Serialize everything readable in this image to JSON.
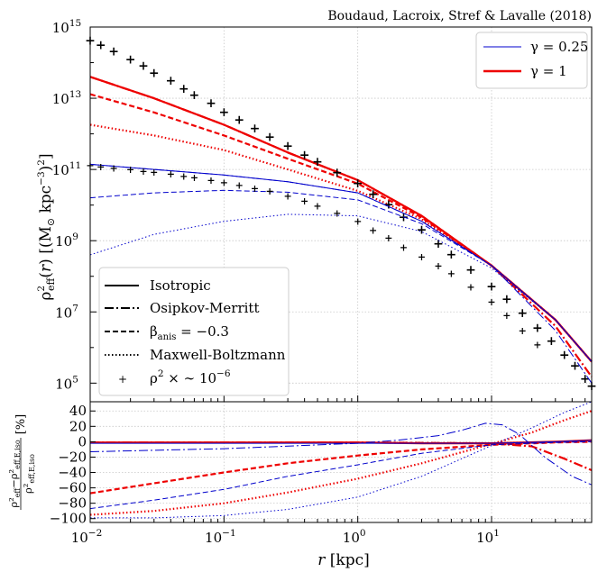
{
  "citation": "Boudaud, Lacroix, Stref & Lavalle (2018)",
  "colors": {
    "gamma_0.25": "#0000cc",
    "gamma_1": "#ee0000",
    "grid": "#c8c8c8"
  },
  "chart_data": [
    {
      "type": "line",
      "panel": "top",
      "title": "",
      "xlabel": "r [kpc]",
      "ylabel": "ρ²_eff(r) [(M_⊙ kpc⁻³)²]",
      "xscale": "log",
      "yscale": "log",
      "xlim": [
        0.01,
        56
      ],
      "ylim": [
        30000,
        1000000000000000.0
      ],
      "x_ticks": [
        {
          "base": "10",
          "exp": "−2"
        },
        {
          "base": "10",
          "exp": "−1"
        },
        {
          "base": "10",
          "exp": "0"
        },
        {
          "base": "10",
          "exp": "1"
        }
      ],
      "y_ticks": [
        {
          "base": "10",
          "exp": "5"
        },
        {
          "base": "10",
          "exp": "7"
        },
        {
          "base": "10",
          "exp": "9"
        },
        {
          "base": "10",
          "exp": "11"
        },
        {
          "base": "10",
          "exp": "13"
        },
        {
          "base": "10",
          "exp": "15"
        }
      ],
      "grid": true,
      "legend_gamma": {
        "position": "top-right",
        "entries": [
          {
            "label": "γ = 0.25",
            "color": "#0000cc"
          },
          {
            "label": "γ = 1",
            "color": "#ee0000"
          }
        ]
      },
      "legend_style": {
        "position": "bottom-left",
        "entries": [
          {
            "label": "Isotropic",
            "style": "solid"
          },
          {
            "label": "Osipkov-Merritt",
            "style": "dashdot"
          },
          {
            "label": "β_anis = −0.3",
            "style": "dashed"
          },
          {
            "label": "Maxwell-Boltzmann",
            "style": "dotted"
          },
          {
            "label": "ρ² × ∼ 10⁻⁶",
            "style": "plus"
          }
        ]
      },
      "series": [
        {
          "gamma": "1",
          "kind": "isotropic",
          "x": [
            0.01,
            0.03,
            0.1,
            0.3,
            1,
            3,
            10,
            30,
            56
          ],
          "y": [
            40000000000000.0,
            10000000000000.0,
            1800000000000.0,
            300000000000.0,
            50000000000.0,
            5000000000.0,
            200000000.0,
            6000000.0,
            400000.0
          ]
        },
        {
          "gamma": "1",
          "kind": "osipkov-merritt",
          "x": [
            0.01,
            0.03,
            0.1,
            0.3,
            1,
            3,
            10,
            30,
            56
          ],
          "y": [
            40000000000000.0,
            10000000000000.0,
            1800000000000.0,
            300000000000.0,
            50000000000.0,
            5000000000.0,
            200000000.0,
            4000000.0,
            150000.0
          ]
        },
        {
          "gamma": "1",
          "kind": "beta_anis",
          "x": [
            0.01,
            0.03,
            0.1,
            0.3,
            1,
            3,
            10,
            30,
            56
          ],
          "y": [
            13000000000000.0,
            4000000000000.0,
            900000000000.0,
            200000000000.0,
            40000000000.0,
            4500000000.0,
            200000000.0,
            6000000.0,
            400000.0
          ]
        },
        {
          "gamma": "1",
          "kind": "maxwell-boltzmann",
          "x": [
            0.01,
            0.03,
            0.1,
            0.3,
            1,
            3,
            10,
            30,
            56
          ],
          "y": [
            1800000000000.0,
            900000000000.0,
            350000000000.0,
            100000000000.0,
            25000000000.0,
            4000000000.0,
            200000000.0,
            6000000.0,
            400000.0
          ]
        },
        {
          "gamma": "1",
          "kind": "rho_squared_scaled",
          "x": [
            0.01,
            0.012,
            0.015,
            0.02,
            0.025,
            0.03,
            0.04,
            0.05,
            0.06,
            0.08,
            0.1,
            0.13,
            0.17,
            0.22,
            0.3,
            0.4,
            0.5,
            0.7,
            1,
            1.3,
            1.7,
            2.2,
            3,
            4,
            5,
            7,
            10,
            13,
            17,
            22,
            28,
            35,
            42,
            50,
            56
          ],
          "y": [
            400000000000000.0,
            300000000000000.0,
            200000000000000.0,
            120000000000000.0,
            80000000000000.0,
            50000000000000.0,
            30000000000000.0,
            18000000000000.0,
            12000000000000.0,
            7000000000000.0,
            4000000000000.0,
            2400000000000.0,
            1400000000000.0,
            800000000000.0,
            450000000000.0,
            250000000000.0,
            160000000000.0,
            80000000000.0,
            40000000000.0,
            20000000000.0,
            10000000000.0,
            4500000000.0,
            2000000000.0,
            800000000.0,
            400000000.0,
            150000000.0,
            50000000.0,
            22000000.0,
            9000000.0,
            3500000.0,
            1500000.0,
            600000.0,
            300000.0,
            130000.0,
            80000.0
          ]
        },
        {
          "gamma": "0.25",
          "kind": "isotropic",
          "x": [
            0.01,
            0.03,
            0.1,
            0.3,
            1,
            3,
            10,
            30,
            56
          ],
          "y": [
            140000000000.0,
            100000000000.0,
            70000000000.0,
            45000000000.0,
            22000000000.0,
            3500000000.0,
            200000000.0,
            6000000.0,
            400000.0
          ]
        },
        {
          "gamma": "0.25",
          "kind": "osipkov-merritt",
          "x": [
            0.01,
            0.03,
            0.1,
            0.3,
            1,
            3,
            10,
            30,
            56
          ],
          "y": [
            140000000000.0,
            100000000000.0,
            70000000000.0,
            45000000000.0,
            22000000000.0,
            3500000000.0,
            200000000.0,
            3000000.0,
            100000.0
          ]
        },
        {
          "gamma": "0.25",
          "kind": "beta_anis",
          "x": [
            0.01,
            0.03,
            0.1,
            0.3,
            1,
            3,
            10,
            30,
            56
          ],
          "y": [
            16000000000.0,
            22000000000.0,
            26000000000.0,
            23000000000.0,
            14000000000.0,
            3000000000.0,
            200000000.0,
            6000000.0,
            400000.0
          ]
        },
        {
          "gamma": "0.25",
          "kind": "maxwell-boltzmann",
          "x": [
            0.01,
            0.03,
            0.1,
            0.3,
            1,
            3,
            10,
            30,
            56
          ],
          "y": [
            400000000.0,
            1500000000.0,
            3500000000.0,
            5500000000.0,
            5000000000.0,
            1800000000.0,
            170000000.0,
            6000000.0,
            400000.0
          ]
        },
        {
          "gamma": "0.25",
          "kind": "rho_squared_scaled",
          "x": [
            0.01,
            0.012,
            0.015,
            0.02,
            0.025,
            0.03,
            0.04,
            0.05,
            0.06,
            0.08,
            0.1,
            0.13,
            0.17,
            0.22,
            0.3,
            0.4,
            0.5,
            0.7,
            1,
            1.3,
            1.7,
            2.2,
            3,
            4,
            5,
            7,
            10,
            13,
            17,
            22
          ],
          "y": [
            130000000000.0,
            120000000000.0,
            110000000000.0,
            100000000000.0,
            90000000000.0,
            85000000000.0,
            75000000000.0,
            65000000000.0,
            60000000000.0,
            50000000000.0,
            43000000000.0,
            36000000000.0,
            30000000000.0,
            25000000000.0,
            18000000000.0,
            13000000000.0,
            9500000000.0,
            6000000000.0,
            3500000000.0,
            2000000000.0,
            1200000000.0,
            650000000.0,
            350000000.0,
            200000000.0,
            120000000.0,
            50000000.0,
            19000000.0,
            8000000.0,
            3000000.0,
            1200000.0
          ]
        }
      ]
    },
    {
      "type": "line",
      "panel": "bottom",
      "title": "",
      "xlabel": "r [kpc]",
      "ylabel": "(ρ²_eff − ρ²_eff,E,iso) / ρ²_eff,E,iso [%]",
      "xscale": "log",
      "xlim": [
        0.01,
        56
      ],
      "ylim": [
        -105,
        52
      ],
      "y_ticks": [
        "40",
        "20",
        "0",
        "−20",
        "−40",
        "−60",
        "−80",
        "−100"
      ],
      "grid": true,
      "series": [
        {
          "gamma": "1",
          "kind": "osipkov-merritt",
          "x": [
            0.01,
            0.1,
            1,
            3,
            10,
            20,
            35,
            56
          ],
          "y": [
            -1,
            -1,
            -1,
            -1.5,
            -2,
            -6,
            -22,
            -37
          ]
        },
        {
          "gamma": "1",
          "kind": "isotropic",
          "x": [
            0.01,
            0.1,
            1,
            3,
            10,
            30,
            56
          ],
          "y": [
            -1,
            -1,
            -1,
            -2,
            -2,
            0,
            2
          ]
        },
        {
          "gamma": "1",
          "kind": "beta_anis",
          "x": [
            0.01,
            0.03,
            0.1,
            0.3,
            1,
            3,
            10,
            30,
            56
          ],
          "y": [
            -67,
            -54,
            -40,
            -28,
            -18,
            -10,
            -4,
            -1,
            0
          ]
        },
        {
          "gamma": "1",
          "kind": "maxwell-boltzmann",
          "x": [
            0.01,
            0.03,
            0.1,
            0.3,
            1,
            3,
            10,
            20,
            35,
            56
          ],
          "y": [
            -95,
            -90,
            -80,
            -66,
            -48,
            -28,
            -3,
            12,
            28,
            40
          ]
        },
        {
          "gamma": "0.25",
          "kind": "osipkov-merritt",
          "x": [
            0.01,
            0.1,
            1,
            2,
            4,
            6,
            9,
            12,
            16,
            25,
            40,
            56
          ],
          "y": [
            -13,
            -9,
            -2,
            2,
            8,
            15,
            24,
            22,
            10,
            -20,
            -45,
            -56
          ]
        },
        {
          "gamma": "0.25",
          "kind": "beta_anis",
          "x": [
            0.01,
            0.03,
            0.1,
            0.3,
            1,
            3,
            10,
            30,
            56
          ],
          "y": [
            -87,
            -76,
            -62,
            -45,
            -30,
            -15,
            -4,
            -1,
            0
          ]
        },
        {
          "gamma": "0.25",
          "kind": "isotropic",
          "x": [
            0.01,
            0.1,
            1,
            10,
            30,
            56
          ],
          "y": [
            -2,
            -2,
            -2,
            -2,
            0,
            2
          ]
        },
        {
          "gamma": "0.25",
          "kind": "maxwell-boltzmann",
          "x": [
            0.01,
            0.03,
            0.1,
            0.3,
            1,
            3,
            10,
            20,
            35,
            56
          ],
          "y": [
            -99,
            -99,
            -96,
            -88,
            -72,
            -45,
            -5,
            18,
            38,
            52
          ]
        }
      ]
    }
  ]
}
